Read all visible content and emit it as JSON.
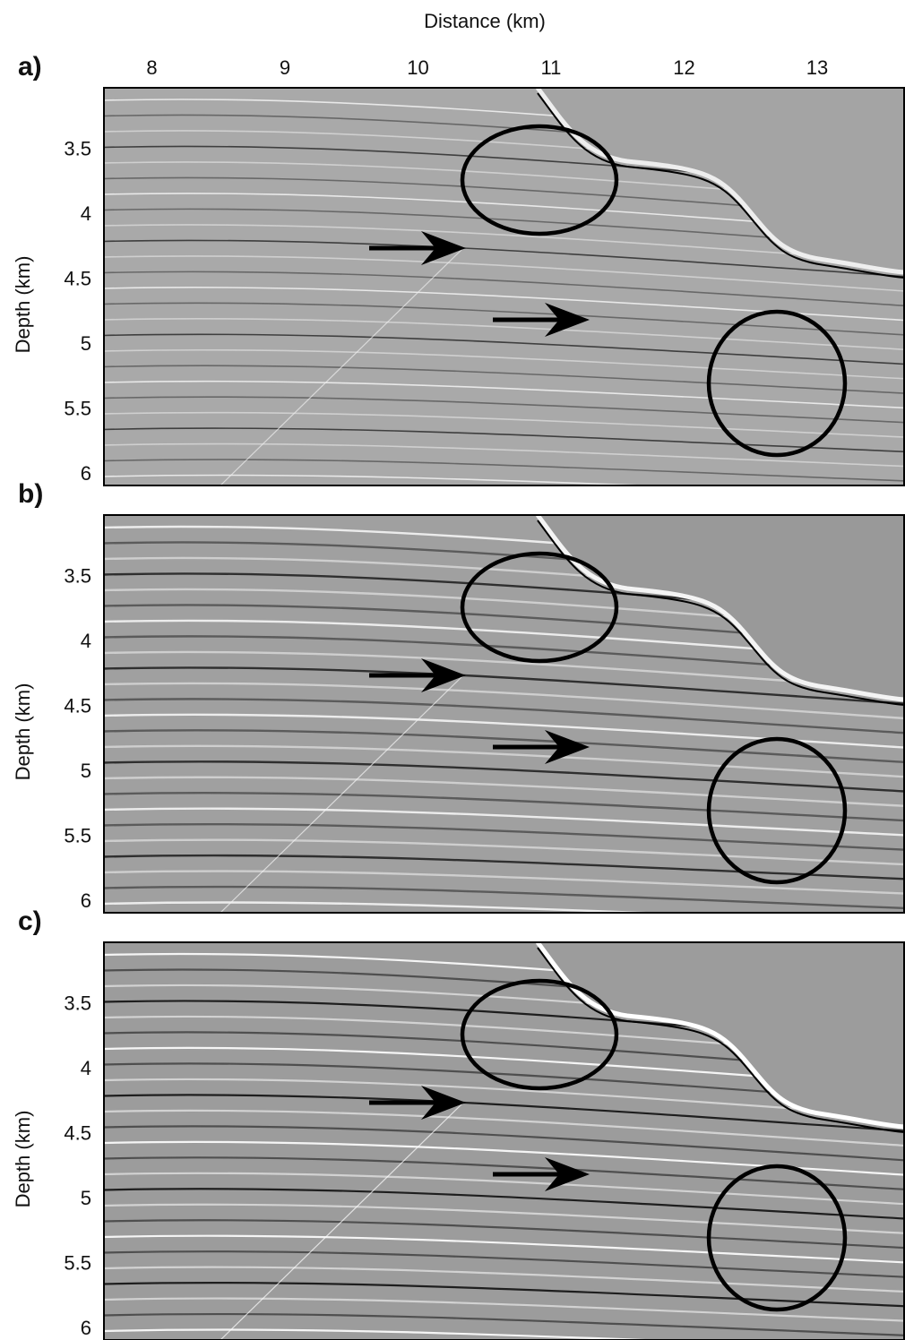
{
  "chart_data": [
    {
      "type": "image",
      "panel_label": "a)",
      "xlabel": "Distance (km)",
      "ylabel": "Depth (km)",
      "xlim": [
        7.64,
        13.66
      ],
      "xticks": [
        8,
        9,
        10,
        11,
        12,
        13
      ],
      "ylim": [
        3.02,
        6.08
      ],
      "yticks": [
        3.5,
        4,
        4.5,
        5,
        5.5,
        6
      ]
    },
    {
      "type": "image",
      "panel_label": "b)",
      "ylabel": "Depth (km)",
      "xlim": [
        7.64,
        13.66
      ],
      "ylim": [
        3.02,
        6.08
      ],
      "yticks": [
        3.5,
        4,
        4.5,
        5,
        5.5,
        6
      ]
    },
    {
      "type": "image",
      "panel_label": "c)",
      "ylabel": "Depth (km)",
      "xlim": [
        7.64,
        13.66
      ],
      "ylim": [
        3.02,
        6.08
      ],
      "yticks": [
        3.5,
        4,
        4.5,
        5,
        5.5,
        6
      ]
    }
  ]
}
